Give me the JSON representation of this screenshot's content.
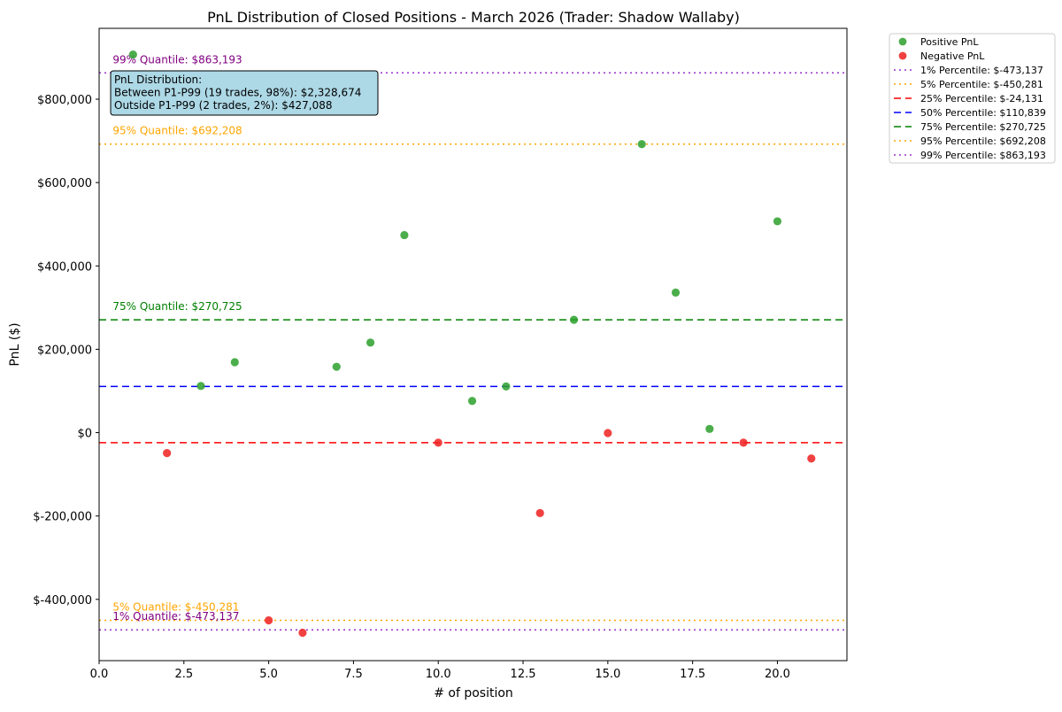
{
  "chart_data": {
    "type": "scatter",
    "title": "PnL Distribution of Closed Positions - March 2026 (Trader: Shadow Wallaby)",
    "xlabel": "# of position",
    "ylabel": "PnL ($)",
    "xlim": [
      0,
      22.05
    ],
    "ylim": [
      -547000,
      970000
    ],
    "x_ticks": [
      0,
      2.5,
      5,
      7.5,
      10,
      12.5,
      15,
      17.5,
      20
    ],
    "x_tick_labels": [
      "0.0",
      "2.5",
      "5.0",
      "7.5",
      "10.0",
      "12.5",
      "15.0",
      "17.5",
      "20.0"
    ],
    "y_ticks": [
      -400000,
      -200000,
      0,
      200000,
      400000,
      600000,
      800000
    ],
    "y_tick_labels": [
      "$-400,000",
      "$-200,000",
      "$0",
      "$200,000",
      "$400,000",
      "$600,000",
      "$800,000"
    ],
    "grid": false,
    "legend_position": "outside-top-right",
    "series": [
      {
        "name": "Positive PnL",
        "color": "#2ca02c",
        "points": [
          {
            "x": 1,
            "y": 907000
          },
          {
            "x": 3,
            "y": 112000
          },
          {
            "x": 4,
            "y": 169000
          },
          {
            "x": 7,
            "y": 158000
          },
          {
            "x": 8,
            "y": 216000
          },
          {
            "x": 9,
            "y": 474000
          },
          {
            "x": 11,
            "y": 76000
          },
          {
            "x": 12,
            "y": 110839
          },
          {
            "x": 14,
            "y": 270725
          },
          {
            "x": 16,
            "y": 692208
          },
          {
            "x": 17,
            "y": 336000
          },
          {
            "x": 18,
            "y": 9000
          },
          {
            "x": 20,
            "y": 507000
          }
        ]
      },
      {
        "name": "Negative PnL",
        "color": "#ee2020",
        "points": [
          {
            "x": 2,
            "y": -49000
          },
          {
            "x": 5,
            "y": -450281
          },
          {
            "x": 6,
            "y": -480000
          },
          {
            "x": 10,
            "y": -24131
          },
          {
            "x": 13,
            "y": -193000
          },
          {
            "x": 15,
            "y": -1000
          },
          {
            "x": 19,
            "y": -24131
          },
          {
            "x": 21,
            "y": -62000
          }
        ]
      }
    ],
    "percentile_lines": [
      {
        "legend": "1% Percentile: $-473,137",
        "value": -473137,
        "color": "#9932cc",
        "style": "dotted",
        "annotation": "1% Quantile: $-473,137",
        "annotation_color": "#800080"
      },
      {
        "legend": "5% Percentile: $-450,281",
        "value": -450281,
        "color": "#ffa500",
        "style": "dotted",
        "annotation": "5% Quantile: $-450,281",
        "annotation_color": "#ffa500"
      },
      {
        "legend": "25% Percentile: $-24,131",
        "value": -24131,
        "color": "#ff0000",
        "style": "dashed",
        "annotation": "",
        "annotation_color": "#ff0000"
      },
      {
        "legend": "50% Percentile: $110,839",
        "value": 110839,
        "color": "#0000ff",
        "style": "dashed",
        "annotation": "",
        "annotation_color": "#0000ff"
      },
      {
        "legend": "75% Percentile: $270,725",
        "value": 270725,
        "color": "#008000",
        "style": "dashed",
        "annotation": "75% Quantile: $270,725",
        "annotation_color": "#008000"
      },
      {
        "legend": "95% Percentile: $692,208",
        "value": 692208,
        "color": "#ffa500",
        "style": "dotted",
        "annotation": "95% Quantile: $692,208",
        "annotation_color": "#ffa500"
      },
      {
        "legend": "99% Percentile: $863,193",
        "value": 863193,
        "color": "#9932cc",
        "style": "dotted",
        "annotation": "99% Quantile: $863,193",
        "annotation_color": "#800080"
      }
    ],
    "info_box": {
      "lines": [
        "PnL Distribution:",
        "Between P1-P99 (19 trades, 98%): $2,328,674",
        "Outside P1-P99 (2 trades, 2%): $427,088"
      ],
      "background": "#add8e6"
    }
  }
}
